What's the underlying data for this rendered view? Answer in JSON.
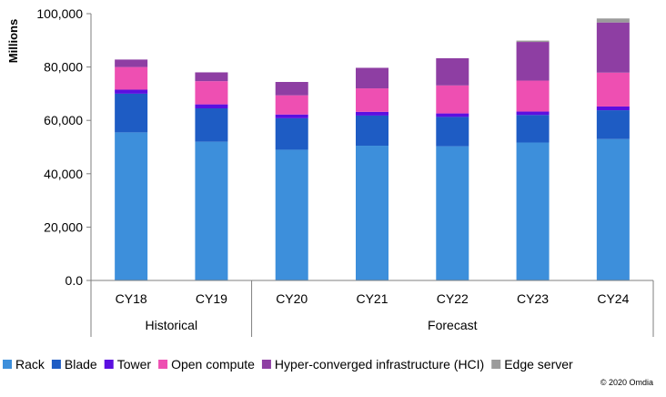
{
  "chart_data": {
    "type": "bar",
    "stacked": true,
    "ylabel": "Millions",
    "ylim": [
      0,
      100000
    ],
    "yticks": [
      0,
      20000,
      40000,
      60000,
      80000,
      100000
    ],
    "ytick_labels": [
      "0.0",
      "20,000",
      "40,000",
      "60,000",
      "80,000",
      "100,000"
    ],
    "categories": [
      "CY18",
      "CY19",
      "CY20",
      "CY21",
      "CY22",
      "CY23",
      "CY24"
    ],
    "groups": [
      {
        "label": "Historical",
        "categories": [
          "CY18",
          "CY19"
        ]
      },
      {
        "label": "Forecast",
        "categories": [
          "CY20",
          "CY21",
          "CY22",
          "CY23",
          "CY24"
        ]
      }
    ],
    "series": [
      {
        "name": "Rack",
        "color": "#3d8fdb",
        "values": [
          55500,
          52000,
          49000,
          50500,
          50300,
          51700,
          53000
        ]
      },
      {
        "name": "Blade",
        "color": "#1e5cc4",
        "values": [
          14500,
          12500,
          11800,
          11300,
          11000,
          10300,
          10800
        ]
      },
      {
        "name": "Tower",
        "color": "#5b0fe0",
        "values": [
          1500,
          1500,
          1400,
          1400,
          1300,
          1300,
          1400
        ]
      },
      {
        "name": "Open compute",
        "color": "#ee4fb2",
        "values": [
          8500,
          8700,
          7200,
          8800,
          10500,
          11600,
          12700
        ]
      },
      {
        "name": "Hyper-converged infrastructure (HCI)",
        "color": "#8e3ea3",
        "values": [
          2800,
          3300,
          5000,
          7700,
          10200,
          14500,
          18800
        ]
      },
      {
        "name": "Edge server",
        "color": "#9b9b9b",
        "values": [
          0,
          0,
          0,
          0,
          0,
          500,
          1500
        ]
      }
    ],
    "grid": false,
    "legend_position": "bottom"
  },
  "credit": "© 2020 Omdia"
}
